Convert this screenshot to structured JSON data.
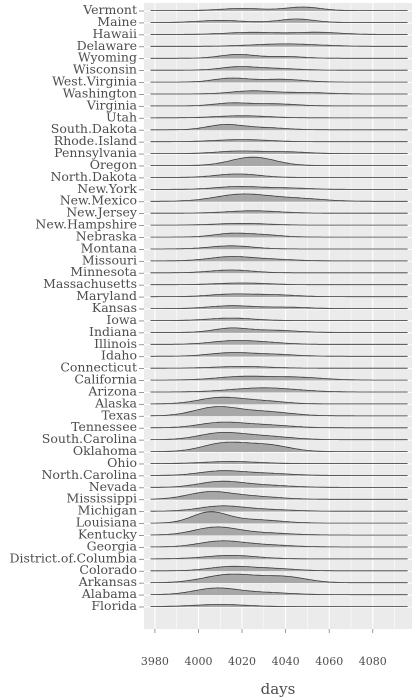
{
  "chart_data": {
    "type": "area",
    "subtype": "ridgeline",
    "xlabel": "days",
    "xlim": [
      3975,
      4098
    ],
    "x_ticks": [
      3980,
      4000,
      4020,
      4040,
      4060,
      4080
    ],
    "grid": true,
    "colors": {
      "panel": "#ebebeb",
      "grid": "#ffffff",
      "fill": "#a3a3a3",
      "line": "#3a3a3a",
      "text": "#4d4d4d"
    },
    "series": [
      {
        "name": "Vermont",
        "peaks": [
          [
            4048,
            8,
            0.5
          ],
          [
            4020,
            10,
            0.3
          ]
        ]
      },
      {
        "name": "Maine",
        "peaks": [
          [
            4045,
            8,
            0.5
          ],
          [
            4010,
            10,
            0.3
          ]
        ]
      },
      {
        "name": "Hawaii",
        "peaks": [
          [
            4025,
            12,
            0.3
          ],
          [
            4055,
            10,
            0.3
          ]
        ]
      },
      {
        "name": "Delaware",
        "peaks": [
          [
            4040,
            15,
            0.35
          ]
        ]
      },
      {
        "name": "Wyoming",
        "peaks": [
          [
            4018,
            8,
            0.55
          ],
          [
            4040,
            8,
            0.25
          ]
        ]
      },
      {
        "name": "Wisconsin",
        "peaks": [
          [
            4018,
            8,
            0.45
          ],
          [
            4035,
            10,
            0.25
          ]
        ]
      },
      {
        "name": "West.Virginia",
        "peaks": [
          [
            4015,
            8,
            0.55
          ],
          [
            4038,
            10,
            0.4
          ]
        ]
      },
      {
        "name": "Washington",
        "peaks": [
          [
            4025,
            10,
            0.45
          ],
          [
            4050,
            10,
            0.2
          ]
        ]
      },
      {
        "name": "Virginia",
        "peaks": [
          [
            4015,
            8,
            0.4
          ],
          [
            4035,
            10,
            0.3
          ]
        ]
      },
      {
        "name": "Utah",
        "peaks": [
          [
            4020,
            12,
            0.3
          ]
        ]
      },
      {
        "name": "South.Dakota",
        "peaks": [
          [
            4012,
            8,
            0.7
          ],
          [
            4030,
            10,
            0.3
          ]
        ]
      },
      {
        "name": "Rhode.Island",
        "peaks": [
          [
            4020,
            12,
            0.3
          ]
        ]
      },
      {
        "name": "Pennsylvania",
        "peaks": [
          [
            4018,
            10,
            0.35
          ],
          [
            4040,
            10,
            0.25
          ]
        ]
      },
      {
        "name": "Oregon",
        "peaks": [
          [
            4025,
            10,
            1.2
          ]
        ]
      },
      {
        "name": "North.Dakota",
        "peaks": [
          [
            4018,
            10,
            0.5
          ]
        ]
      },
      {
        "name": "New.York",
        "peaks": [
          [
            4018,
            10,
            0.4
          ],
          [
            4040,
            10,
            0.2
          ]
        ]
      },
      {
        "name": "New.Mexico",
        "peaks": [
          [
            4020,
            12,
            1.0
          ],
          [
            4045,
            12,
            0.4
          ]
        ]
      },
      {
        "name": "New.Jersey",
        "peaks": [
          [
            4025,
            12,
            0.35
          ]
        ]
      },
      {
        "name": "New.Hampshire",
        "peaks": [
          [
            4020,
            12,
            0.25
          ]
        ]
      },
      {
        "name": "Nebraska",
        "peaks": [
          [
            4015,
            8,
            0.5
          ],
          [
            4030,
            8,
            0.3
          ]
        ]
      },
      {
        "name": "Montana",
        "peaks": [
          [
            4015,
            10,
            0.45
          ]
        ]
      },
      {
        "name": "Missouri",
        "peaks": [
          [
            4015,
            10,
            0.6
          ],
          [
            4035,
            10,
            0.2
          ]
        ]
      },
      {
        "name": "Minnesota",
        "peaks": [
          [
            4015,
            10,
            0.4
          ]
        ]
      },
      {
        "name": "Massachusetts",
        "peaks": [
          [
            4020,
            12,
            0.25
          ]
        ]
      },
      {
        "name": "Maryland",
        "peaks": [
          [
            4015,
            10,
            0.35
          ],
          [
            4035,
            10,
            0.25
          ]
        ]
      },
      {
        "name": "Kansas",
        "peaks": [
          [
            4015,
            10,
            0.4
          ],
          [
            4040,
            10,
            0.2
          ]
        ]
      },
      {
        "name": "Iowa",
        "peaks": [
          [
            4015,
            10,
            0.35
          ]
        ]
      },
      {
        "name": "Indiana",
        "peaks": [
          [
            4015,
            8,
            0.6
          ],
          [
            4035,
            10,
            0.3
          ]
        ]
      },
      {
        "name": "Illinois",
        "peaks": [
          [
            4015,
            10,
            0.45
          ],
          [
            4030,
            10,
            0.25
          ]
        ]
      },
      {
        "name": "Idaho",
        "peaks": [
          [
            4015,
            10,
            0.5
          ],
          [
            4035,
            10,
            0.25
          ]
        ]
      },
      {
        "name": "Connecticut",
        "peaks": [
          [
            4020,
            12,
            0.25
          ]
        ]
      },
      {
        "name": "California",
        "peaks": [
          [
            4020,
            12,
            0.5
          ],
          [
            4045,
            12,
            0.4
          ]
        ]
      },
      {
        "name": "Arizona",
        "peaks": [
          [
            4030,
            15,
            0.6
          ]
        ]
      },
      {
        "name": "Alaska",
        "peaks": [
          [
            4010,
            10,
            0.9
          ],
          [
            4030,
            10,
            0.4
          ]
        ]
      },
      {
        "name": "Texas",
        "peaks": [
          [
            4008,
            10,
            1.2
          ],
          [
            4030,
            12,
            0.6
          ]
        ]
      },
      {
        "name": "Tennessee",
        "peaks": [
          [
            4010,
            10,
            0.7
          ],
          [
            4030,
            12,
            0.4
          ]
        ]
      },
      {
        "name": "South.Carolina",
        "peaks": [
          [
            4010,
            10,
            0.9
          ],
          [
            4030,
            12,
            0.5
          ]
        ]
      },
      {
        "name": "Oklahoma",
        "peaks": [
          [
            4012,
            10,
            1.2
          ],
          [
            4032,
            10,
            0.9
          ]
        ]
      },
      {
        "name": "Ohio",
        "peaks": [
          [
            4015,
            12,
            0.3
          ]
        ]
      },
      {
        "name": "North.Carolina",
        "peaks": [
          [
            4010,
            10,
            0.6
          ],
          [
            4030,
            12,
            0.3
          ]
        ]
      },
      {
        "name": "Nevada",
        "peaks": [
          [
            4010,
            10,
            0.8
          ],
          [
            4030,
            12,
            0.3
          ]
        ]
      },
      {
        "name": "Mississippi",
        "peaks": [
          [
            4005,
            10,
            1.0
          ],
          [
            4025,
            12,
            0.4
          ]
        ]
      },
      {
        "name": "Michigan",
        "peaks": [
          [
            4010,
            10,
            0.7
          ],
          [
            4030,
            12,
            0.25
          ]
        ]
      },
      {
        "name": "Louisiana",
        "peaks": [
          [
            4005,
            8,
            1.5
          ],
          [
            4025,
            12,
            0.5
          ]
        ]
      },
      {
        "name": "Kentucky",
        "peaks": [
          [
            4008,
            10,
            1.1
          ],
          [
            4030,
            12,
            0.3
          ]
        ]
      },
      {
        "name": "Georgia",
        "peaks": [
          [
            4010,
            10,
            0.8
          ],
          [
            4030,
            12,
            0.3
          ]
        ]
      },
      {
        "name": "District.of.Columbia",
        "peaks": [
          [
            4015,
            12,
            0.5
          ]
        ]
      },
      {
        "name": "Colorado",
        "peaks": [
          [
            4015,
            10,
            0.6
          ],
          [
            4035,
            10,
            0.3
          ]
        ]
      },
      {
        "name": "Arkansas",
        "peaks": [
          [
            4015,
            12,
            1.2
          ],
          [
            4040,
            10,
            0.8
          ]
        ]
      },
      {
        "name": "Alabama",
        "peaks": [
          [
            4008,
            10,
            0.9
          ],
          [
            4030,
            12,
            0.3
          ]
        ]
      },
      {
        "name": "Florida",
        "peaks": [
          [
            4010,
            12,
            0.3
          ]
        ]
      }
    ]
  }
}
